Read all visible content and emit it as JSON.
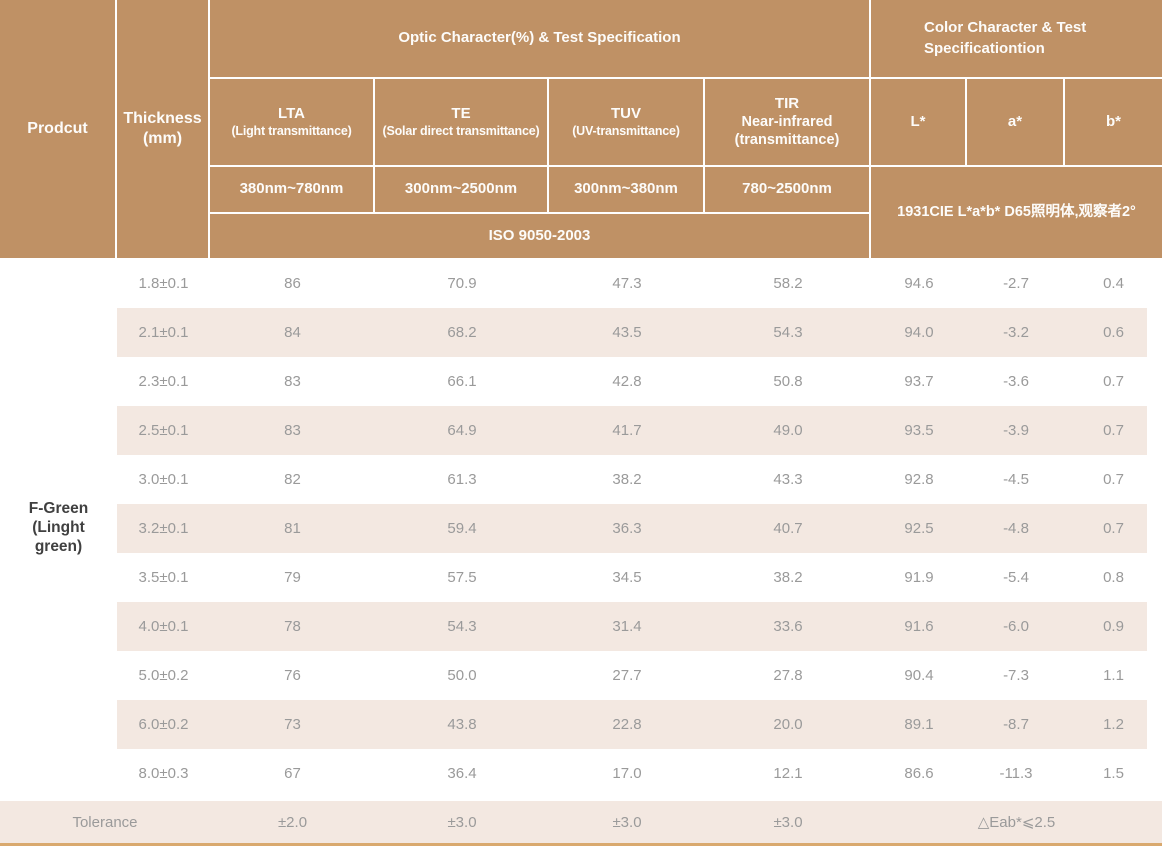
{
  "colors": {
    "header_brown": "#bf9165",
    "stripe_beige": "#f3e8e1",
    "bottom_line_tan": "#d9a96e",
    "value_gray": "#9a9a9a",
    "product_text_dark": "#404040",
    "header_text": "#fdfcfa"
  },
  "header": {
    "product_label": "Prodcut",
    "thickness_label": "Thickness",
    "thickness_unit": "(mm)",
    "optic_group_title": "Optic Character(%) & Test Specification",
    "color_group_title": "Color Character & Test Specificationtion",
    "optic_columns": [
      {
        "abbr": "LTA",
        "desc": "(Light transmittance)",
        "range": "380nm~780nm"
      },
      {
        "abbr": "TE",
        "desc": "(Solar direct transmittance)",
        "range": "300nm~2500nm"
      },
      {
        "abbr": "TUV",
        "desc": "(UV-transmittance)",
        "range": "300nm~380nm"
      },
      {
        "abbr": "TIR",
        "line2": "Near-infrared",
        "desc": "(transmittance)",
        "range": "780~2500nm"
      }
    ],
    "lab_columns": [
      "L*",
      "a*",
      "b*"
    ],
    "iso_standard": "ISO 9050-2003",
    "cie_standard": "1931CIE L*a*b*  D65照明体,观察者2°"
  },
  "product": {
    "name_lines": [
      "F-Green",
      "(Linght",
      "green)"
    ]
  },
  "column_keys": [
    "thickness",
    "lta",
    "te",
    "tuv",
    "tir",
    "l",
    "a",
    "b"
  ],
  "rows": [
    [
      "1.8±0.1",
      "86",
      "70.9",
      "47.3",
      "58.2",
      "94.6",
      "-2.7",
      "0.4"
    ],
    [
      "2.1±0.1",
      "84",
      "68.2",
      "43.5",
      "54.3",
      "94.0",
      "-3.2",
      "0.6"
    ],
    [
      "2.3±0.1",
      "83",
      "66.1",
      "42.8",
      "50.8",
      "93.7",
      "-3.6",
      "0.7"
    ],
    [
      "2.5±0.1",
      "83",
      "64.9",
      "41.7",
      "49.0",
      "93.5",
      "-3.9",
      "0.7"
    ],
    [
      "3.0±0.1",
      "82",
      "61.3",
      "38.2",
      "43.3",
      "92.8",
      "-4.5",
      "0.7"
    ],
    [
      "3.2±0.1",
      "81",
      "59.4",
      "36.3",
      "40.7",
      "92.5",
      "-4.8",
      "0.7"
    ],
    [
      "3.5±0.1",
      "79",
      "57.5",
      "34.5",
      "38.2",
      "91.9",
      "-5.4",
      "0.8"
    ],
    [
      "4.0±0.1",
      "78",
      "54.3",
      "31.4",
      "33.6",
      "91.6",
      "-6.0",
      "0.9"
    ],
    [
      "5.0±0.2",
      "76",
      "50.0",
      "27.7",
      "27.8",
      "90.4",
      "-7.3",
      "1.1"
    ],
    [
      "6.0±0.2",
      "73",
      "43.8",
      "22.8",
      "20.0",
      "89.1",
      "-8.7",
      "1.2"
    ],
    [
      "8.0±0.3",
      "67",
      "36.4",
      "17.0",
      "12.1",
      "86.6",
      "-11.3",
      "1.5"
    ]
  ],
  "tolerance": {
    "label": "Tolerance",
    "lta": "±2.0",
    "te": "±3.0",
    "tuv": "±3.0",
    "tir": "±3.0",
    "eab": "△Eab*⩽2.5"
  }
}
